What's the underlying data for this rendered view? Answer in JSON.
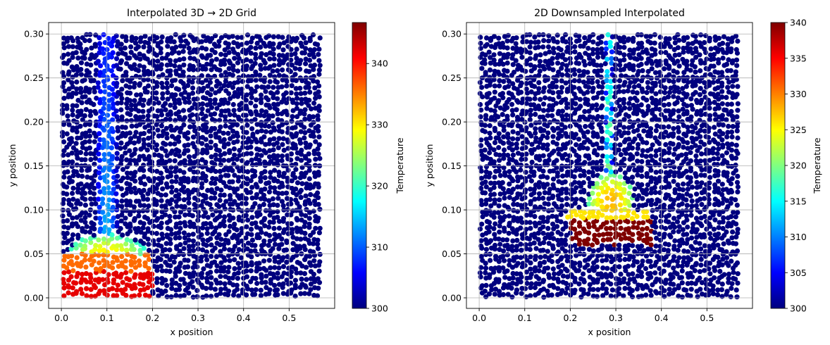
{
  "colormap_stops": [
    "#00007f",
    "#0000ff",
    "#0080ff",
    "#00ffff",
    "#80ff80",
    "#ffff00",
    "#ff8000",
    "#ff0000",
    "#7f0000"
  ],
  "chart_data": [
    {
      "type": "scatter",
      "title": "Interpolated 3D → 2D Grid",
      "xlabel": "x position",
      "ylabel": "y position",
      "xlim": [
        -0.028,
        0.6
      ],
      "ylim": [
        -0.012,
        0.313
      ],
      "xticks": [
        0.0,
        0.1,
        0.2,
        0.3,
        0.4,
        0.5
      ],
      "xtick_labels": [
        "0.0",
        "0.1",
        "0.2",
        "0.3",
        "0.4",
        "0.5"
      ],
      "yticks": [
        0.0,
        0.05,
        0.1,
        0.15,
        0.2,
        0.25,
        0.3
      ],
      "ytick_labels": [
        "0.00",
        "0.05",
        "0.10",
        "0.15",
        "0.20",
        "0.25",
        "0.30"
      ],
      "grid": true,
      "domain": {
        "x": [
          0.0,
          0.57
        ],
        "y": [
          0.0,
          0.3
        ]
      },
      "colorbar": {
        "label": "Temperature",
        "range": [
          300,
          346.7
        ],
        "ticks": [
          300,
          310,
          320,
          330,
          340
        ],
        "tick_labels": [
          "300",
          "310",
          "320",
          "330",
          "340"
        ]
      },
      "baseline_value": 300,
      "hot_regions": [
        {
          "shape": "rect",
          "x": [
            0.0,
            0.2
          ],
          "y": [
            0.0,
            0.03
          ],
          "value": 342
        },
        {
          "shape": "rect",
          "x": [
            0.0,
            0.2
          ],
          "y": [
            0.03,
            0.05
          ],
          "value": 336
        },
        {
          "shape": "ellipse",
          "center": [
            0.1,
            0.05
          ],
          "radii": [
            0.085,
            0.022
          ],
          "value": 330
        },
        {
          "shape": "column",
          "x": [
            0.075,
            0.125
          ],
          "y": [
            0.05,
            0.3
          ],
          "peak_value": 315,
          "top_value": 307
        }
      ]
    },
    {
      "type": "scatter",
      "title": "2D Downsampled Interpolated",
      "xlabel": "x position",
      "ylabel": "y position",
      "xlim": [
        -0.028,
        0.6
      ],
      "ylim": [
        -0.012,
        0.313
      ],
      "xticks": [
        0.0,
        0.1,
        0.2,
        0.3,
        0.4,
        0.5
      ],
      "xtick_labels": [
        "0.0",
        "0.1",
        "0.2",
        "0.3",
        "0.4",
        "0.5"
      ],
      "yticks": [
        0.0,
        0.05,
        0.1,
        0.15,
        0.2,
        0.25,
        0.3
      ],
      "ytick_labels": [
        "0.00",
        "0.05",
        "0.10",
        "0.15",
        "0.20",
        "0.25",
        "0.30"
      ],
      "grid": true,
      "domain": {
        "x": [
          0.0,
          0.57
        ],
        "y": [
          0.0,
          0.3
        ]
      },
      "colorbar": {
        "label": "Temperature",
        "range": [
          300,
          340
        ],
        "ticks": [
          300,
          305,
          310,
          315,
          320,
          325,
          330,
          335,
          340
        ],
        "tick_labels": [
          "300",
          "305",
          "310",
          "315",
          "320",
          "325",
          "330",
          "335",
          "340"
        ]
      },
      "baseline_value": 300,
      "hot_regions": [
        {
          "shape": "rect",
          "x": [
            0.2,
            0.38
          ],
          "y": [
            0.06,
            0.09
          ],
          "value": 340
        },
        {
          "shape": "rect",
          "x": [
            0.19,
            0.38
          ],
          "y": [
            0.09,
            0.1
          ],
          "value": 326
        },
        {
          "shape": "ellipse",
          "center": [
            0.29,
            0.11
          ],
          "radii": [
            0.05,
            0.032
          ],
          "value": 328
        },
        {
          "shape": "column",
          "x": [
            0.277,
            0.293
          ],
          "y": [
            0.13,
            0.3
          ],
          "peak_value": 322,
          "top_value": 317
        }
      ]
    }
  ]
}
